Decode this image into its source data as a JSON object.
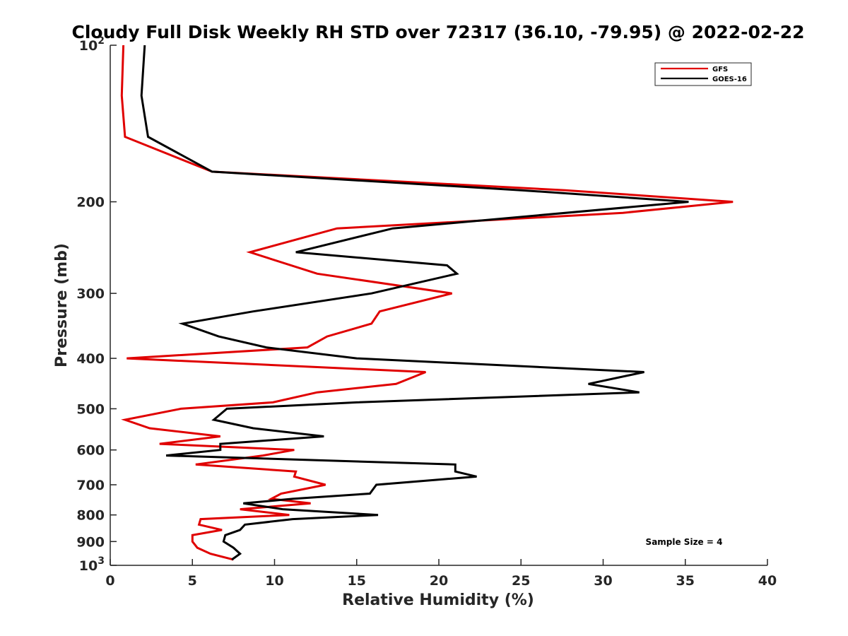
{
  "chart_data": {
    "type": "line",
    "title": "Cloudy Full Disk Weekly RH STD over 72317 (36.10, -79.95) @ 2022-02-22",
    "xlabel": "Relative Humidity (%)",
    "ylabel": "Pressure (mb)",
    "xlim": [
      0,
      40
    ],
    "ylim": [
      100,
      1000
    ],
    "y_scale": "log",
    "y_reversed": true,
    "x_ticks": [
      "0",
      "5",
      "10",
      "15",
      "20",
      "25",
      "30",
      "35",
      "40"
    ],
    "y_ticks": [
      {
        "value": 100,
        "base": "10",
        "exp": "2"
      },
      {
        "value": 200,
        "label": "200"
      },
      {
        "value": 300,
        "label": "300"
      },
      {
        "value": 400,
        "label": "400"
      },
      {
        "value": 500,
        "label": "500"
      },
      {
        "value": 600,
        "label": "600"
      },
      {
        "value": 700,
        "label": "700"
      },
      {
        "value": 800,
        "label": "800"
      },
      {
        "value": 900,
        "label": "900"
      },
      {
        "value": 1000,
        "base": "10",
        "exp": "3"
      }
    ],
    "grid": false,
    "legend_position": "top-right",
    "annotation": "Sample Size = 4",
    "series": [
      {
        "name": "GFS",
        "color": "#e00000",
        "points": [
          [
            0.8,
            100
          ],
          [
            0.7,
            125
          ],
          [
            0.9,
            150
          ],
          [
            6.2,
            175
          ],
          [
            27.7,
            190
          ],
          [
            37.9,
            200
          ],
          [
            31.2,
            210
          ],
          [
            13.8,
            225
          ],
          [
            8.5,
            250
          ],
          [
            12.6,
            275
          ],
          [
            20.8,
            300
          ],
          [
            16.4,
            325
          ],
          [
            15.9,
            343
          ],
          [
            13.2,
            363
          ],
          [
            12.0,
            381
          ],
          [
            1.0,
            400
          ],
          [
            19.2,
            425
          ],
          [
            17.4,
            448
          ],
          [
            12.6,
            465
          ],
          [
            9.9,
            486
          ],
          [
            4.3,
            500
          ],
          [
            0.9,
            525
          ],
          [
            2.4,
            545
          ],
          [
            6.7,
            565
          ],
          [
            3.0,
            584
          ],
          [
            11.2,
            600
          ],
          [
            9.3,
            615
          ],
          [
            5.2,
            640
          ],
          [
            11.3,
            660
          ],
          [
            11.2,
            675
          ],
          [
            13.1,
            700
          ],
          [
            10.4,
            728
          ],
          [
            9.8,
            745
          ],
          [
            12.2,
            760
          ],
          [
            7.9,
            780
          ],
          [
            10.9,
            800
          ],
          [
            5.5,
            815
          ],
          [
            5.4,
            835
          ],
          [
            6.8,
            855
          ],
          [
            5.0,
            875
          ],
          [
            5.0,
            900
          ],
          [
            5.3,
            925
          ],
          [
            6.1,
            950
          ],
          [
            7.5,
            975
          ]
        ]
      },
      {
        "name": "GOES-16",
        "color": "#000000",
        "points": [
          [
            2.1,
            100
          ],
          [
            1.9,
            125
          ],
          [
            2.3,
            150
          ],
          [
            6.2,
            175
          ],
          [
            25.0,
            190
          ],
          [
            35.2,
            200
          ],
          [
            17.2,
            225
          ],
          [
            11.3,
            250
          ],
          [
            20.5,
            265
          ],
          [
            21.1,
            275
          ],
          [
            15.9,
            300
          ],
          [
            8.7,
            325
          ],
          [
            4.4,
            343
          ],
          [
            6.6,
            363
          ],
          [
            9.5,
            381
          ],
          [
            15.0,
            400
          ],
          [
            32.5,
            425
          ],
          [
            29.1,
            448
          ],
          [
            32.2,
            465
          ],
          [
            15.0,
            486
          ],
          [
            7.1,
            500
          ],
          [
            6.3,
            525
          ],
          [
            8.7,
            545
          ],
          [
            13.0,
            565
          ],
          [
            6.7,
            584
          ],
          [
            6.7,
            600
          ],
          [
            3.4,
            615
          ],
          [
            21.0,
            640
          ],
          [
            21.0,
            660
          ],
          [
            22.3,
            675
          ],
          [
            16.2,
            700
          ],
          [
            15.8,
            728
          ],
          [
            11.1,
            745
          ],
          [
            8.1,
            760
          ],
          [
            10.5,
            780
          ],
          [
            16.3,
            800
          ],
          [
            11.1,
            815
          ],
          [
            8.2,
            835
          ],
          [
            7.9,
            855
          ],
          [
            7.0,
            875
          ],
          [
            6.9,
            900
          ],
          [
            7.5,
            925
          ],
          [
            7.9,
            950
          ],
          [
            7.4,
            975
          ]
        ]
      }
    ]
  }
}
